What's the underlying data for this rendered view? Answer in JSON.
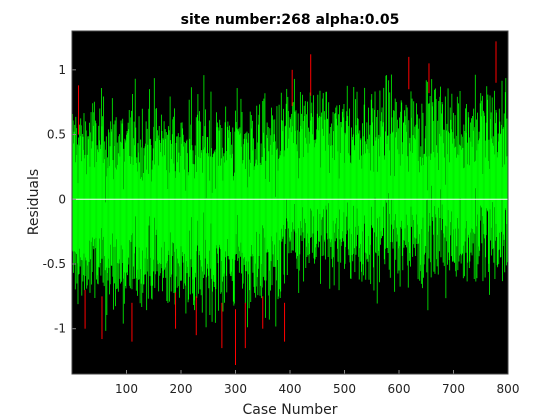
{
  "chart_data": {
    "type": "line",
    "title": "site number:268 alpha:0.05",
    "xlabel": "Case Number",
    "ylabel": "Residuals",
    "xlim": [
      0,
      800
    ],
    "ylim": [
      -1.35,
      1.3
    ],
    "x_ticks": [
      100,
      200,
      300,
      400,
      500,
      600,
      700,
      800
    ],
    "y_ticks": [
      -1,
      -0.5,
      0,
      0.5,
      1
    ],
    "background": "#000000",
    "grid": false,
    "n_cases": 800,
    "series": [
      {
        "role": "residual intervals (outliers)",
        "color": "#ff0000"
      },
      {
        "role": "residual intervals",
        "color": "#00ff00"
      },
      {
        "role": "zero reference line",
        "color": "#ffffff"
      }
    ],
    "segments": [
      {
        "x_range": [
          1,
          385
        ],
        "center": -0.05,
        "half_width": 0.5
      },
      {
        "x_range": [
          386,
          800
        ],
        "center": 0.1,
        "half_width": 0.45
      }
    ],
    "outlier_highlights": [
      {
        "x": 12,
        "y": [
          0.5,
          0.88
        ]
      },
      {
        "x": 24,
        "y": [
          -1.0,
          -0.7
        ]
      },
      {
        "x": 55,
        "y": [
          -1.08,
          -0.75
        ]
      },
      {
        "x": 110,
        "y": [
          -1.1,
          -0.8
        ]
      },
      {
        "x": 190,
        "y": [
          -1.0,
          -0.72
        ]
      },
      {
        "x": 228,
        "y": [
          -1.05,
          -0.75
        ]
      },
      {
        "x": 275,
        "y": [
          -1.15,
          -0.8
        ]
      },
      {
        "x": 300,
        "y": [
          -1.28,
          -0.85
        ]
      },
      {
        "x": 318,
        "y": [
          -1.15,
          -0.8
        ]
      },
      {
        "x": 350,
        "y": [
          -1.0,
          -0.75
        ]
      },
      {
        "x": 390,
        "y": [
          -1.1,
          -0.8
        ]
      },
      {
        "x": 404,
        "y": [
          0.72,
          1.0
        ]
      },
      {
        "x": 438,
        "y": [
          0.8,
          1.12
        ]
      },
      {
        "x": 618,
        "y": [
          0.85,
          1.1
        ]
      },
      {
        "x": 655,
        "y": [
          0.82,
          1.05
        ]
      },
      {
        "x": 778,
        "y": [
          0.9,
          1.22
        ]
      }
    ]
  }
}
